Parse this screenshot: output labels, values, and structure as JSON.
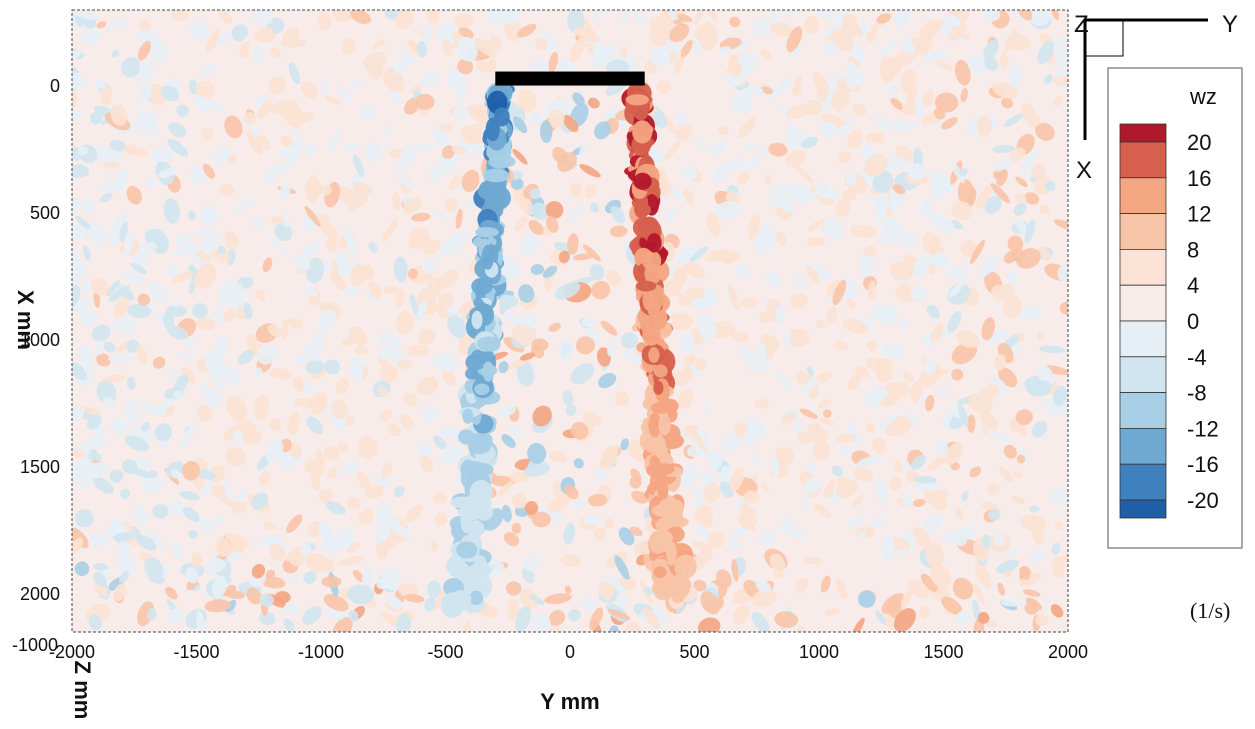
{
  "chart_data": {
    "type": "heatmap",
    "title": "",
    "xlabel": "Y mm",
    "ylabel": "X mm",
    "zlabel": "Z mm",
    "xlim": [
      -2000,
      2000
    ],
    "ylim": [
      -300,
      2150
    ],
    "x_ticks": [
      "-2000",
      "-1500",
      "-1000",
      "-500",
      "0",
      "500",
      "1000",
      "1500",
      "2000"
    ],
    "x_tick_values": [
      -2000,
      -1500,
      -1000,
      -500,
      0,
      500,
      1000,
      1500,
      2000
    ],
    "y_ticks": [
      "0",
      "500",
      "1000",
      "1500",
      "2000"
    ],
    "y_tick_values": [
      0,
      500,
      1000,
      1500,
      2000
    ],
    "z_tick": "-1000",
    "variable": "wz",
    "unit": "(1/s)",
    "colorbar_levels": [
      20,
      16,
      12,
      8,
      4,
      0,
      -4,
      -8,
      -12,
      -16,
      -20
    ],
    "colorbar_labels": [
      "20",
      "16",
      "12",
      "8",
      "4",
      "0",
      "-4",
      "-8",
      "-12",
      "-16",
      "-20"
    ],
    "colorbar_colors": [
      "#b2182b",
      "#d6604d",
      "#f4a582",
      "#f8c4a8",
      "#fbe2d4",
      "#f7ece8",
      "#e7eff6",
      "#d1e5f0",
      "#a8cfe6",
      "#6fa9d2",
      "#3f81bf",
      "#1f5fa8"
    ],
    "plate": {
      "y_start": -300,
      "y_end": 300,
      "x": -30
    },
    "shear_layers": [
      {
        "name": "negative",
        "y_start": -280,
        "y_end": -420,
        "x_end": 2050,
        "peak": -22
      },
      {
        "name": "positive",
        "y_start": 270,
        "y_end": 420,
        "x_end": 2050,
        "peak": 22
      }
    ],
    "orientation_triad": {
      "up": "Z",
      "right": "Y",
      "down": "X"
    }
  }
}
